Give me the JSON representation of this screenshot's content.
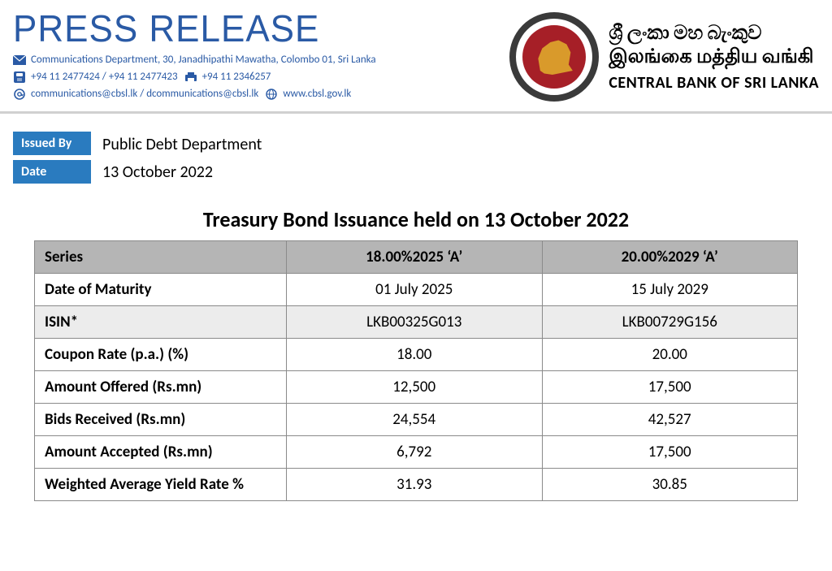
{
  "header": {
    "press_title": "PRESS RELEASE",
    "address": "Communications Department, 30, Janadhipathi Mawatha, Colombo 01, Sri Lanka",
    "phone1": "+94 11 2477424 / +94 11 2477423",
    "phone2": "+94 11  2346257",
    "email": "communications@cbsl.lk / dcommunications@cbsl.lk",
    "website": "www.cbsl.gov.lk",
    "bank_name_si": "ශ්‍රී ලංකා මහ බැංකුව",
    "bank_name_ta": "இலங்கை மத்திய வங்கி",
    "bank_name_en": "CENTRAL BANK OF SRI LANKA"
  },
  "issued": {
    "label_by": "Issued By",
    "label_date": "Date",
    "by": "Public Debt Department",
    "date": "13 October 2022"
  },
  "title": "Treasury Bond Issuance held on 13 October 2022",
  "table": {
    "columns": [
      "Series",
      "18.00%2025 ‘A’",
      "20.00%2029 ‘A’"
    ],
    "rows": [
      {
        "label": "Date of Maturity",
        "c1": "01 July 2025",
        "c2": "15 July 2029",
        "shade": "odd"
      },
      {
        "label": "ISIN*",
        "c1": "LKB00325G013",
        "c2": "LKB00729G156",
        "shade": "even"
      },
      {
        "label": "Coupon Rate (p.a.) (%)",
        "c1": "18.00",
        "c2": "20.00",
        "shade": "odd"
      },
      {
        "label": "Amount Offered (Rs.mn)",
        "c1": "12,500",
        "c2": "17,500",
        "shade": "odd"
      },
      {
        "label": "Bids Received (Rs.mn)",
        "c1": "24,554",
        "c2": "42,527",
        "shade": "odd"
      },
      {
        "label": "Amount Accepted (Rs.mn)",
        "c1": "6,792",
        "c2": "17,500",
        "shade": "odd"
      },
      {
        "label": "Weighted Average Yield Rate %",
        "c1": "31.93",
        "c2": "30.85",
        "shade": "odd"
      }
    ],
    "header_bg": "#b5b5b5",
    "border_color": "#8a8a8a",
    "row_odd_bg": "#ffffff",
    "row_even_bg": "#ececec"
  },
  "colors": {
    "brand_blue": "#2a5aa5",
    "tag_blue": "#2a7bbf",
    "logo_ring": "#3a3a3a",
    "logo_bg": "#a61f27",
    "logo_lion": "#d99a2b"
  }
}
